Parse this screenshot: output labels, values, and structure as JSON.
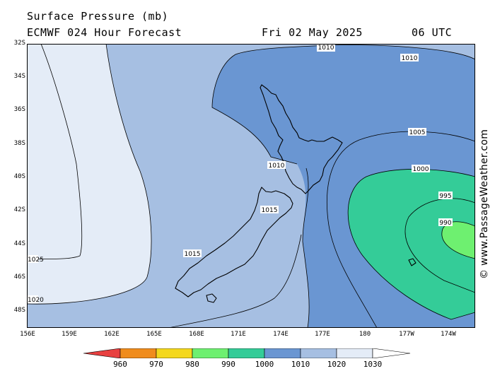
{
  "header": {
    "title": "Surface Pressure (mb)",
    "model": "ECMWF 024 Hour Forecast",
    "date": "Fri 02 May 2025",
    "time": "06 UTC"
  },
  "copyright": "© www.PassageWeather.com",
  "lat_labels": [
    "32S",
    "34S",
    "36S",
    "38S",
    "40S",
    "42S",
    "44S",
    "46S",
    "48S"
  ],
  "lon_labels": [
    "156E",
    "159E",
    "162E",
    "165E",
    "168E",
    "171E",
    "174E",
    "177E",
    "180",
    "177W",
    "174W"
  ],
  "isobar_labels": [
    "1010",
    "1010",
    "1010",
    "1005",
    "1000",
    "995",
    "990",
    "1015",
    "1015",
    "1025",
    "1020"
  ],
  "colorbar": {
    "ticks": [
      "960",
      "970",
      "980",
      "990",
      "1000",
      "1010",
      "1020",
      "1030"
    ],
    "colors": [
      "#e84040",
      "#f08c1c",
      "#f4d81c",
      "#6ef070",
      "#34cc98",
      "#6a96d2",
      "#a6bfe2",
      "#e4ecf7",
      "#ffffff"
    ]
  },
  "map_colors": {
    "p1020_1030": "#e4ecf7",
    "p1010_1020": "#a6bfe2",
    "p1000_1010": "#6a96d2",
    "p990_1000": "#34cc98",
    "p980_990": "#6ef070"
  }
}
